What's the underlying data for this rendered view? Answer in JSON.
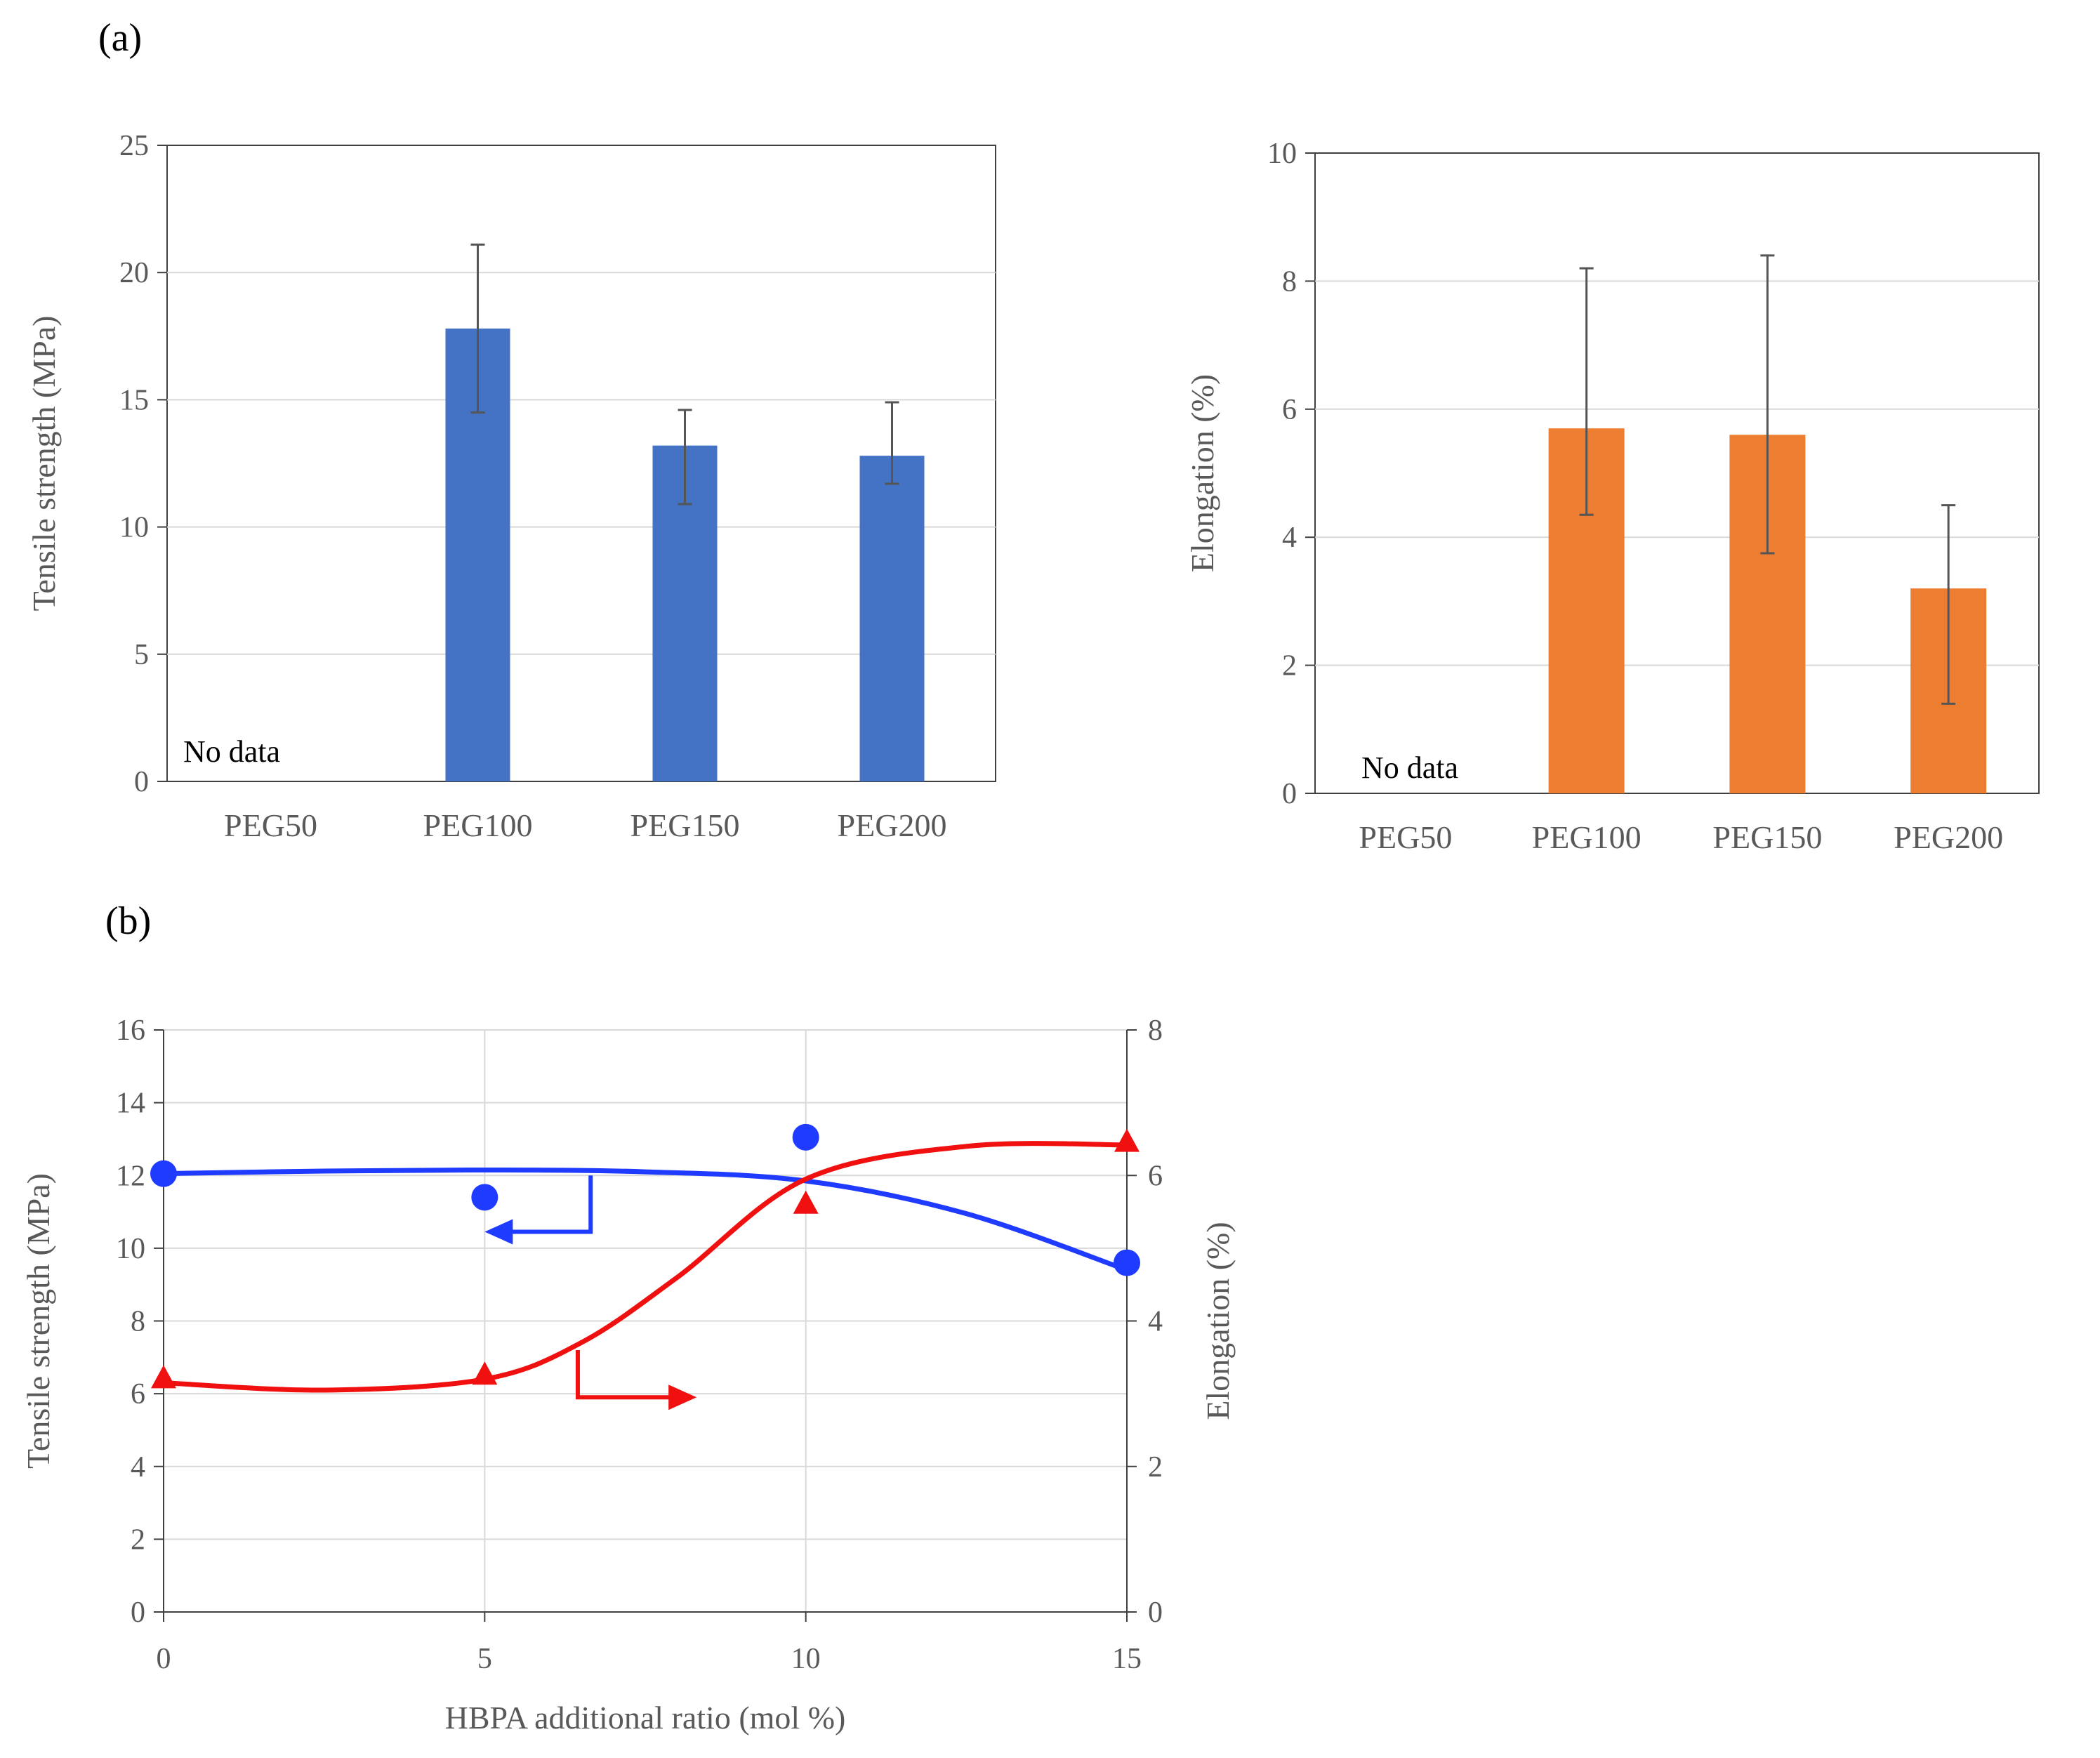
{
  "panel_labels": {
    "a": "(a)",
    "b": "(b)"
  },
  "colors": {
    "blue_bar": "#4472C4",
    "orange_bar": "#ED7D31",
    "blue_line": "#1F3BFF",
    "red_line": "#F01010",
    "grid": "#D9D9D9",
    "axis_text": "#595959",
    "error_bar": "#555555"
  },
  "chart_data": [
    {
      "id": "a-left",
      "type": "bar",
      "title": "",
      "xlabel": "",
      "ylabel": "Tensile strength (MPa)",
      "categories": [
        "PEG50",
        "PEG100",
        "PEG150",
        "PEG200"
      ],
      "series": [
        {
          "name": "Tensile strength",
          "values": [
            null,
            17.8,
            13.2,
            12.8
          ],
          "error_low": [
            null,
            14.5,
            10.9,
            11.7
          ],
          "error_high": [
            null,
            21.1,
            14.6,
            14.9
          ]
        }
      ],
      "annotation": "No data",
      "ylim": [
        0,
        25
      ],
      "yticks": [
        "0",
        "5",
        "10",
        "15",
        "20",
        "25"
      ],
      "grid": true
    },
    {
      "id": "a-right",
      "type": "bar",
      "title": "",
      "xlabel": "",
      "ylabel": "Elongation (%)",
      "categories": [
        "PEG50",
        "PEG100",
        "PEG150",
        "PEG200"
      ],
      "series": [
        {
          "name": "Elongation",
          "values": [
            null,
            5.7,
            5.6,
            3.2
          ],
          "error_low": [
            null,
            4.35,
            3.75,
            1.4
          ],
          "error_high": [
            null,
            8.2,
            8.4,
            4.5
          ]
        }
      ],
      "annotation": "No data",
      "ylim": [
        0,
        10
      ],
      "yticks": [
        "0",
        "2",
        "4",
        "6",
        "8",
        "10"
      ],
      "grid": true
    },
    {
      "id": "b",
      "type": "scatter",
      "title": "",
      "xlabel": "HBPA  additional ratio (mol %)",
      "ylabel": "Tensile strength (MPa)",
      "y2label": "Elongation (%)",
      "x": [
        0,
        5,
        10,
        15
      ],
      "xlim": [
        0,
        15
      ],
      "xticks": [
        "0",
        "5",
        "10",
        "15"
      ],
      "ylim": [
        0,
        16
      ],
      "yticks": [
        "0",
        "2",
        "4",
        "6",
        "8",
        "10",
        "12",
        "14",
        "16"
      ],
      "y2lim": [
        0,
        8
      ],
      "y2ticks": [
        "0",
        "2",
        "4",
        "6",
        "8"
      ],
      "grid": true,
      "series": [
        {
          "name": "Tensile strength",
          "axis": "left",
          "marker": "circle",
          "values": [
            12.05,
            11.4,
            13.05,
            9.6
          ],
          "fit_curve": [
            [
              0,
              12.05
            ],
            [
              2.5,
              12.12
            ],
            [
              5,
              12.15
            ],
            [
              7.5,
              12.1
            ],
            [
              10,
              11.85
            ],
            [
              12.5,
              10.95
            ],
            [
              15,
              9.4
            ]
          ]
        },
        {
          "name": "Elongation",
          "axis": "right",
          "marker": "triangle",
          "values": [
            3.2,
            3.25,
            5.6,
            6.45
          ],
          "fit_curve": [
            [
              0,
              3.15
            ],
            [
              2.5,
              3.05
            ],
            [
              5,
              3.2
            ],
            [
              6.5,
              3.7
            ],
            [
              8,
              4.6
            ],
            [
              10,
              5.95
            ],
            [
              12.5,
              6.4
            ],
            [
              15,
              6.42
            ]
          ]
        }
      ]
    }
  ]
}
